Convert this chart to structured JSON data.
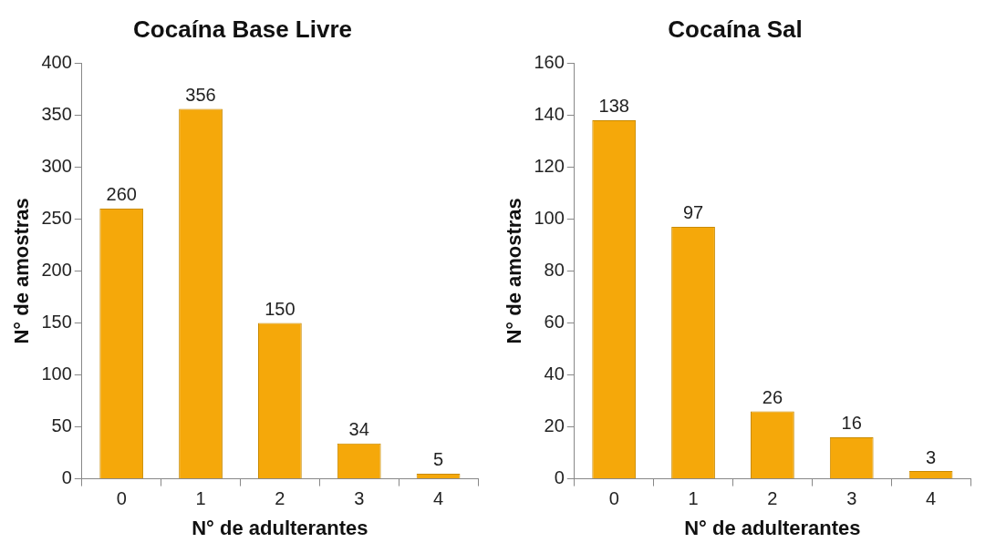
{
  "chart_data": [
    {
      "type": "bar",
      "title": "Cocaína Base Livre",
      "xlabel": "N° de adulterantes",
      "ylabel": "N° de amostras",
      "categories": [
        "0",
        "1",
        "2",
        "3",
        "4"
      ],
      "values": [
        260,
        356,
        150,
        34,
        5
      ],
      "color": "#f5a80a",
      "ylim": [
        0,
        400
      ],
      "yticks": [
        0,
        50,
        100,
        150,
        200,
        250,
        300,
        350,
        400
      ],
      "data_labels": true,
      "grid": false,
      "legend": false
    },
    {
      "type": "bar",
      "title": "Cocaína Sal",
      "xlabel": "N° de adulterantes",
      "ylabel": "N° de amostras",
      "categories": [
        "0",
        "1",
        "2",
        "3",
        "4"
      ],
      "values": [
        138,
        97,
        26,
        16,
        3
      ],
      "color": "#f5a80a",
      "ylim": [
        0,
        160
      ],
      "yticks": [
        0,
        20,
        40,
        60,
        80,
        100,
        120,
        140,
        160
      ],
      "data_labels": true,
      "grid": false,
      "legend": false
    }
  ]
}
